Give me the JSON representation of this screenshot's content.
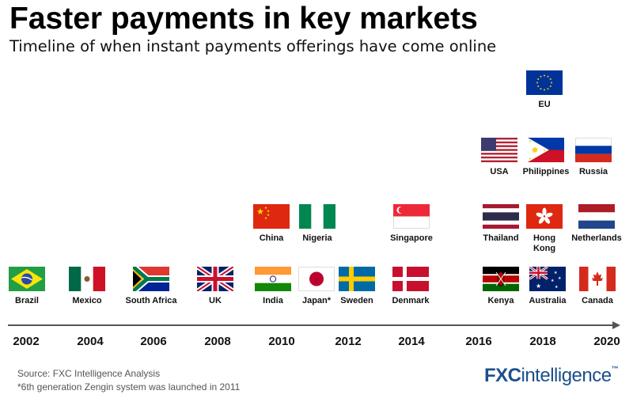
{
  "header": {
    "title": "Faster payments in key markets",
    "subtitle": "Timeline of when instant payments offerings have come online"
  },
  "timeline": {
    "years": [
      "2002",
      "2004",
      "2006",
      "2008",
      "2010",
      "2012",
      "2014",
      "2016",
      "2018",
      "2020"
    ],
    "countries": [
      {
        "label": "Brazil",
        "flag": "brazil-flag"
      },
      {
        "label": "Mexico",
        "flag": "mexico-flag"
      },
      {
        "label": "South Africa",
        "flag": "south-africa-flag"
      },
      {
        "label": "UK",
        "flag": "uk-flag"
      },
      {
        "label": "India",
        "flag": "india-flag"
      },
      {
        "label": "Japan*",
        "flag": "japan-flag"
      },
      {
        "label": "Sweden",
        "flag": "sweden-flag"
      },
      {
        "label": "Denmark",
        "flag": "denmark-flag"
      },
      {
        "label": "China",
        "flag": "china-flag"
      },
      {
        "label": "Nigeria",
        "flag": "nigeria-flag"
      },
      {
        "label": "Singapore",
        "flag": "singapore-flag"
      },
      {
        "label": "Kenya",
        "flag": "kenya-flag"
      },
      {
        "label": "Australia",
        "flag": "australia-flag"
      },
      {
        "label": "Canada",
        "flag": "canada-flag"
      },
      {
        "label": "Thailand",
        "flag": "thailand-flag"
      },
      {
        "label": "Hong Kong",
        "flag": "hong-kong-flag"
      },
      {
        "label": "Netherlands",
        "flag": "netherlands-flag"
      },
      {
        "label": "USA",
        "flag": "usa-flag"
      },
      {
        "label": "Philippines",
        "flag": "philippines-flag"
      },
      {
        "label": "Russia",
        "flag": "russia-flag"
      },
      {
        "label": "EU",
        "flag": "eu-flag"
      }
    ]
  },
  "footer": {
    "source": "Source: FXC Intelligence Analysis",
    "footnote": "*6th generation Zengin system was launched in 2011",
    "logo_fx": "FXC",
    "logo_intel": "intelligence",
    "logo_tm": "™"
  },
  "colors": {
    "logo": "#1c4f8c",
    "axis": "#555555"
  }
}
